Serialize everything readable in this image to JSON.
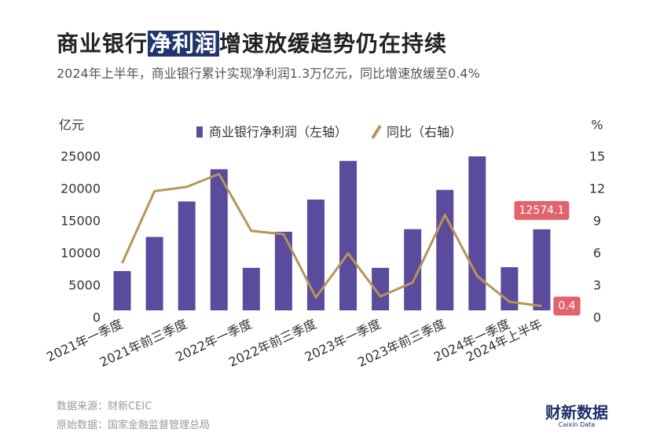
{
  "chart_data": {
    "type": "bar",
    "title": [
      "商业银行",
      "净利润",
      "增速放缓趋势仍在持续"
    ],
    "subtitle": "2024年上半年，商业银行累计实现净利润1.3万亿元，同比增速放缓至0.4%",
    "ylabel": "亿元",
    "y2label": "%",
    "categories": [
      "2021年一季度",
      null,
      "2021年前三季度",
      null,
      "2022年一季度",
      null,
      "2022年前三季度",
      null,
      "2023年一季度",
      null,
      "2023年前三季度",
      null,
      "2024年一季度",
      "2024年上半年"
    ],
    "series": [
      {
        "name": "商业银行净利润（左轴）",
        "type": "bar",
        "axis": "y",
        "color": "#5a4b9c",
        "values": [
          6100,
          11400,
          16900,
          21900,
          6600,
          12200,
          17200,
          23200,
          6600,
          12600,
          18700,
          23900,
          6700,
          12574.1
        ],
        "value_labels": [
          null,
          null,
          null,
          null,
          null,
          null,
          null,
          null,
          null,
          null,
          null,
          null,
          null,
          "12574.1"
        ]
      },
      {
        "name": "同比（右轴）",
        "type": "line",
        "axis": "y2",
        "color": "#b8945a",
        "values": [
          4.4,
          11.1,
          11.5,
          12.7,
          7.4,
          7.1,
          1.2,
          5.3,
          1.3,
          2.6,
          8.9,
          3.2,
          0.8,
          0.4
        ],
        "value_labels": [
          null,
          null,
          null,
          null,
          null,
          null,
          null,
          null,
          null,
          null,
          null,
          null,
          null,
          "0.4"
        ]
      }
    ],
    "ylim": [
      0,
      25000
    ],
    "yticks": [
      0,
      5000,
      10000,
      15000,
      20000,
      25000
    ],
    "y2lim": [
      0,
      15
    ],
    "y2ticks": [
      0,
      3,
      6,
      9,
      12,
      15
    ],
    "grid": false,
    "legend": "top",
    "source": "数据来源：财新CEIC",
    "raw_source": "原始数据：国家金融监督管理总局",
    "logo": "财新数据",
    "logo_sub": "Caixin Data"
  }
}
